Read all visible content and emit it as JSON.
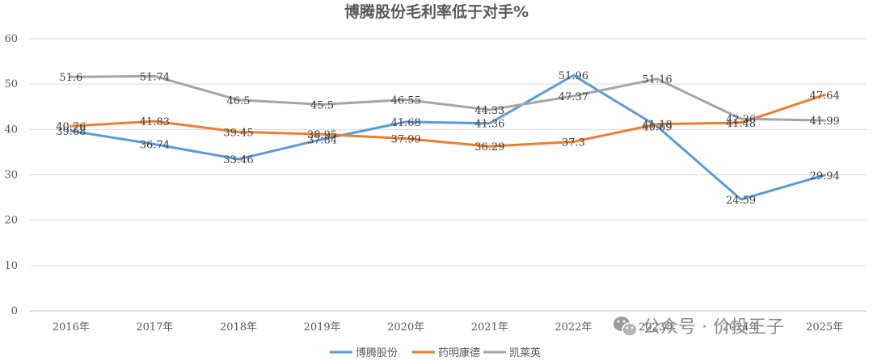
{
  "chart_data": {
    "type": "line",
    "title": "博腾股份毛利率低于对手%",
    "categories": [
      "2016年",
      "2017年",
      "2018年",
      "2019年",
      "2020年",
      "2021年",
      "2022年",
      "2023年",
      "2024年",
      "2025年"
    ],
    "ylim": [
      0,
      60
    ],
    "yticks": [
      0,
      10,
      20,
      30,
      40,
      50,
      60
    ],
    "grid": true,
    "legend_position": "bottom",
    "series": [
      {
        "name": "博腾股份",
        "color": "#5b9bd5",
        "values": [
          39.68,
          36.74,
          33.46,
          37.84,
          41.68,
          41.36,
          51.96,
          40.69,
          24.59,
          29.94
        ]
      },
      {
        "name": "药明康德",
        "color": "#ed7d31",
        "values": [
          40.76,
          41.83,
          39.45,
          38.95,
          37.99,
          36.29,
          37.3,
          41.18,
          41.48,
          47.64
        ]
      },
      {
        "name": "凯莱英",
        "color": "#a5a5a5",
        "values": [
          51.6,
          51.74,
          46.5,
          45.5,
          46.55,
          44.33,
          47.37,
          51.16,
          42.36,
          41.99
        ]
      }
    ]
  },
  "watermark": {
    "text": "公众号 · 价投王子",
    "icon": "wechat-icon"
  }
}
